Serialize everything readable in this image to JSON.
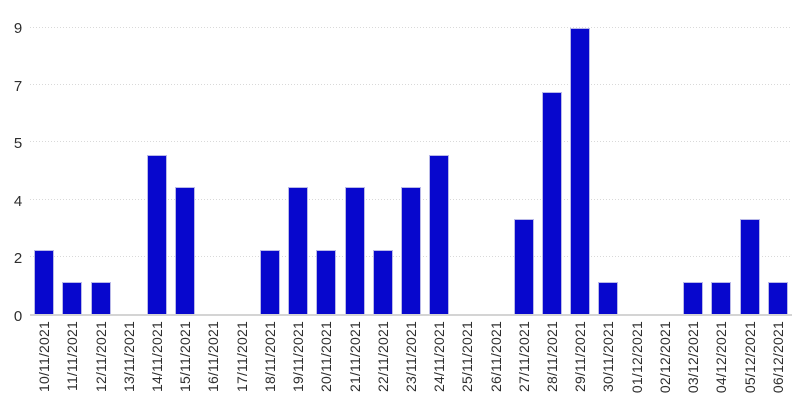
{
  "chart_data": {
    "type": "bar",
    "title": "",
    "xlabel": "",
    "ylabel": "",
    "legend": "none",
    "grid": "horizontal-dotted",
    "ylim": [
      0,
      9
    ],
    "categories": [
      "10/11/2021",
      "11/11/2021",
      "12/11/2021",
      "13/11/2021",
      "14/11/2021",
      "15/11/2021",
      "16/11/2021",
      "17/11/2021",
      "18/11/2021",
      "19/11/2021",
      "20/11/2021",
      "21/11/2021",
      "22/11/2021",
      "23/11/2021",
      "24/11/2021",
      "25/11/2021",
      "26/11/2021",
      "27/11/2021",
      "28/11/2021",
      "29/11/2021",
      "30/11/2021",
      "01/12/2021",
      "02/12/2021",
      "03/12/2021",
      "04/12/2021",
      "05/12/2021",
      "06/12/2021"
    ],
    "values": [
      2,
      1,
      1,
      0,
      5,
      4,
      0,
      0,
      2,
      4,
      2,
      4,
      2,
      4,
      5,
      0,
      0,
      3,
      7,
      9,
      1,
      0,
      0,
      1,
      1,
      3,
      1
    ],
    "y_ticks": [
      {
        "label": "0",
        "pos": 0.0
      },
      {
        "label": "2",
        "pos": 0.2
      },
      {
        "label": "4",
        "pos": 0.4
      },
      {
        "label": "5",
        "pos": 0.6
      },
      {
        "label": "7",
        "pos": 0.8
      },
      {
        "label": "9",
        "pos": 1.0
      }
    ],
    "colors": {
      "bar_fill": "#0707cd",
      "bar_border": "#b9b9e8",
      "axis_line": "#d4d4d4",
      "gridline": "#d9d9d9",
      "tick_label": "#2e2e2e",
      "background": "#ffffff"
    }
  }
}
